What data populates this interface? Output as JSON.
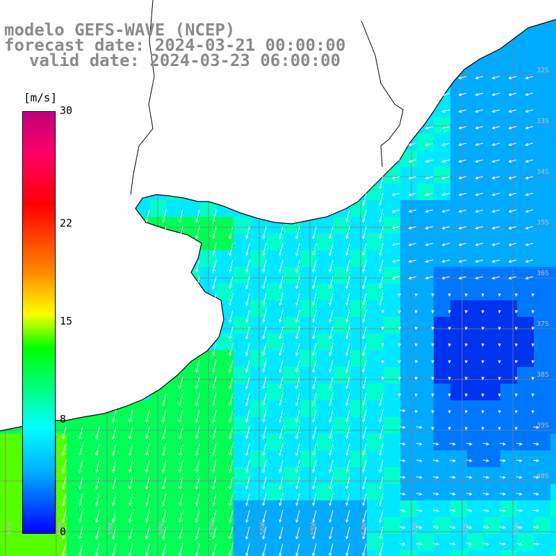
{
  "titles": {
    "line1": "modelo GEFS-WAVE (NCEP)",
    "line2": "forecast date: 2024-03-21 00:00:00",
    "line3": "valid date: 2024-03-23 06:00:00"
  },
  "colorbar": {
    "unit": "[m/s]",
    "ticks": [
      {
        "label": "30",
        "value": 30
      },
      {
        "label": "22",
        "value": 22
      },
      {
        "label": "15",
        "value": 15
      },
      {
        "label": "8",
        "value": 8
      },
      {
        "label": "0",
        "value": 0
      }
    ],
    "range": [
      0,
      30
    ],
    "colors": [
      "#0000ff",
      "#00aaff",
      "#00ffff",
      "#00ff00",
      "#ffff00",
      "#ff8800",
      "#ff0000",
      "#ff0066",
      "#c0007a"
    ]
  },
  "map": {
    "lat_labels": [
      "32S",
      "33S",
      "34S",
      "35S",
      "36S",
      "37S",
      "38S",
      "39S",
      "40S"
    ],
    "lon_labels": [
      "61W",
      "60W",
      "59W",
      "58W",
      "57W",
      "56W",
      "55W",
      "54W",
      "53W",
      "52W",
      "51W"
    ],
    "lat_range": [
      -41,
      -30
    ],
    "lon_range": [
      -62,
      -51
    ],
    "ocean_color": "#00ccff",
    "land_color": "#ffffff",
    "coast_color": "#000000",
    "grid_color": "#808080",
    "arrow_color": "#ffffff"
  }
}
